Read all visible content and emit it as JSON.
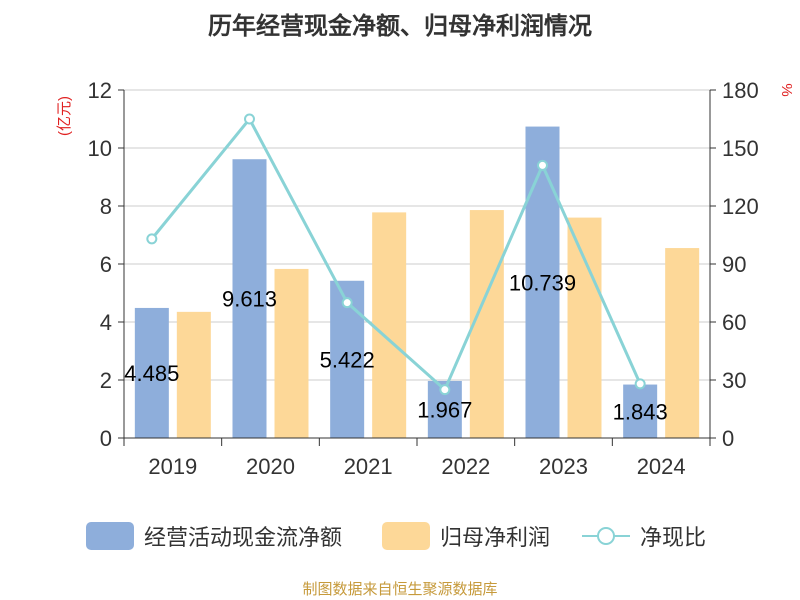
{
  "title": "历年经营现金净额、归母净利润情况",
  "left_axis_unit": "(亿元)",
  "right_axis_unit": "%",
  "legend": {
    "series1": "经营活动现金流净额",
    "series2": "归母净利润",
    "series3": "净现比"
  },
  "source": "制图数据来自恒生聚源数据库",
  "colors": {
    "bar1": "#8eaedb",
    "bar2": "#fdd898",
    "line": "#89d3d6",
    "label": "#e02020"
  },
  "chart_data": {
    "type": "bar",
    "categories": [
      "2019",
      "2020",
      "2021",
      "2022",
      "2023",
      "2024"
    ],
    "y_left": {
      "label": "(亿元)",
      "range": [
        0,
        12
      ],
      "ticks": [
        0,
        2,
        4,
        6,
        8,
        10,
        12
      ]
    },
    "y_right": {
      "label": "%",
      "range": [
        0,
        180
      ],
      "ticks": [
        0,
        30,
        60,
        90,
        120,
        150,
        180
      ]
    },
    "series": [
      {
        "name": "经营活动现金流净额",
        "type": "bar",
        "axis": "left",
        "values": [
          4.485,
          9.613,
          5.422,
          1.967,
          10.739,
          1.843
        ],
        "labels": [
          "4.485",
          "9.613",
          "5.422",
          "1.967",
          "10.739",
          "1.843"
        ]
      },
      {
        "name": "归母净利润",
        "type": "bar",
        "axis": "left",
        "values": [
          4.35,
          5.83,
          7.78,
          7.86,
          7.6,
          6.55
        ]
      },
      {
        "name": "净现比",
        "type": "line",
        "axis": "right",
        "values": [
          103,
          165,
          70,
          25,
          141,
          28
        ]
      }
    ],
    "grid": true,
    "legend_position": "bottom"
  }
}
